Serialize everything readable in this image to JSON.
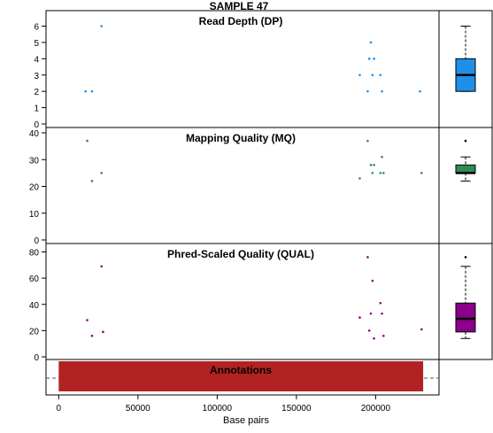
{
  "title": "SAMPLE 47",
  "xlabel": "Base pairs",
  "x_ticks": [
    0,
    50000,
    100000,
    150000,
    200000
  ],
  "x_tick_labels": [
    "0",
    "50000",
    "100000",
    "150000",
    "200000"
  ],
  "xlim": [
    -8000,
    240000
  ],
  "annotations": {
    "label": "Annotations",
    "start": 0,
    "end": 230000,
    "color": "#b22222"
  },
  "chart_data": [
    {
      "type": "scatter",
      "title": "Read Depth (DP)",
      "color": "#1f8fe8",
      "ylim": [
        0,
        6.5
      ],
      "y_ticks": [
        0,
        1,
        2,
        3,
        4,
        5,
        6
      ],
      "y_tick_labels": [
        "0",
        "1",
        "2",
        "3",
        "4",
        "5",
        "6"
      ],
      "x": [
        17000,
        21000,
        27000,
        190000,
        195000,
        196000,
        197000,
        198000,
        199000,
        203000,
        204000,
        228000
      ],
      "y": [
        2,
        2,
        6,
        3,
        2,
        4,
        5,
        3,
        4,
        3,
        2,
        2
      ],
      "box": {
        "whisker_low": 2,
        "q1": 2,
        "median": 3,
        "q3": 4,
        "whisker_high": 6,
        "outliers": [],
        "fill": "#1f8fe8"
      }
    },
    {
      "type": "scatter",
      "title": "Mapping Quality (MQ)",
      "color": "#2e8b57",
      "ylim": [
        -1,
        41
      ],
      "y_ticks": [
        0,
        10,
        20,
        30,
        40
      ],
      "y_tick_labels": [
        "0",
        "10",
        "20",
        "30",
        "40"
      ],
      "x": [
        18000,
        21000,
        27000,
        190000,
        195000,
        197000,
        198000,
        199000,
        203000,
        204000,
        205000,
        229000
      ],
      "y": [
        37,
        22,
        25,
        23,
        37,
        28,
        25,
        28,
        25,
        31,
        25,
        25
      ],
      "box": {
        "whisker_low": 22,
        "q1": 25,
        "median": 25,
        "q3": 28,
        "whisker_high": 31,
        "outliers": [
          37
        ],
        "fill": "#2e8b57"
      }
    },
    {
      "type": "scatter",
      "title": "Phred-Scaled Quality (QUAL)",
      "color": "#8b008b",
      "ylim": [
        -1,
        83
      ],
      "y_ticks": [
        0,
        20,
        40,
        60,
        80
      ],
      "y_tick_labels": [
        "0",
        "20",
        "40",
        "60",
        "80"
      ],
      "x": [
        18000,
        21000,
        27000,
        28000,
        190000,
        195000,
        196000,
        197000,
        198000,
        199000,
        203000,
        204000,
        205000,
        229000
      ],
      "y": [
        28,
        16,
        69,
        19,
        30,
        76,
        20,
        33,
        58,
        14,
        41,
        33,
        16,
        21
      ],
      "box": {
        "whisker_low": 14,
        "q1": 19,
        "median": 29,
        "q3": 41,
        "whisker_high": 69,
        "outliers": [
          76
        ],
        "fill": "#8b008b"
      }
    }
  ]
}
